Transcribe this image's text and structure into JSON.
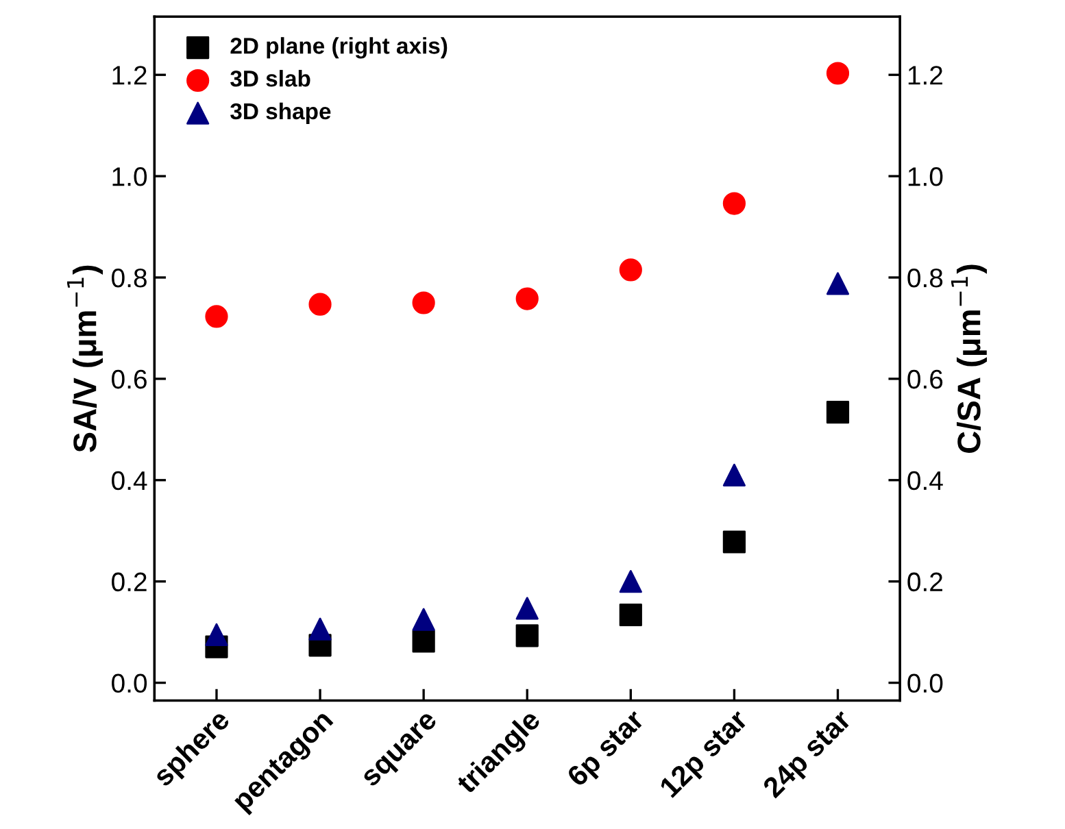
{
  "chart_data": {
    "type": "scatter",
    "ylabel": "SA/V (μm$^{−1}$)",
    "y2label": "C/SA (μm$^{−1}$)",
    "categories": [
      "sphere",
      "pentagon",
      "square",
      "triangle",
      "6p star",
      "12p star",
      "24p star"
    ],
    "series": [
      {
        "name": "2D plane (right axis)",
        "color": "#000000",
        "marker": "square",
        "axis": "y2",
        "values": [
          0.071,
          0.074,
          0.082,
          0.093,
          0.134,
          0.278,
          0.534
        ]
      },
      {
        "name": "3D slab",
        "color": "#ff0000",
        "marker": "circle",
        "values": [
          0.723,
          0.747,
          0.75,
          0.758,
          0.815,
          0.946,
          1.203
        ]
      },
      {
        "name": "3D shape",
        "color": "#000080",
        "marker": "triangle",
        "values": [
          0.095,
          0.106,
          0.125,
          0.147,
          0.2,
          0.41,
          0.788
        ]
      }
    ],
    "ylim": [
      -0.035,
      1.315
    ],
    "y2lim": [
      -0.035,
      1.315
    ],
    "yticks": [
      {
        "value": 0,
        "label": "0.0"
      },
      {
        "value": 0.2,
        "label": "0.2"
      },
      {
        "value": 0.4,
        "label": "0.4"
      },
      {
        "value": 0.6,
        "label": "0.6"
      },
      {
        "value": 0.8,
        "label": "0.8"
      },
      {
        "value": 1.0,
        "label": "1.0"
      },
      {
        "value": 1.2,
        "label": "1.2"
      }
    ],
    "y2ticks": [
      {
        "value": 0,
        "label": "0.0"
      },
      {
        "value": 0.2,
        "label": "0.2"
      },
      {
        "value": 0.4,
        "label": "0.4"
      },
      {
        "value": 0.6,
        "label": "0.6"
      },
      {
        "value": 0.8,
        "label": "0.8"
      },
      {
        "value": 1.0,
        "label": "1.0"
      },
      {
        "value": 1.2,
        "label": "1.2"
      }
    ],
    "grid": false,
    "legend": "top left"
  }
}
